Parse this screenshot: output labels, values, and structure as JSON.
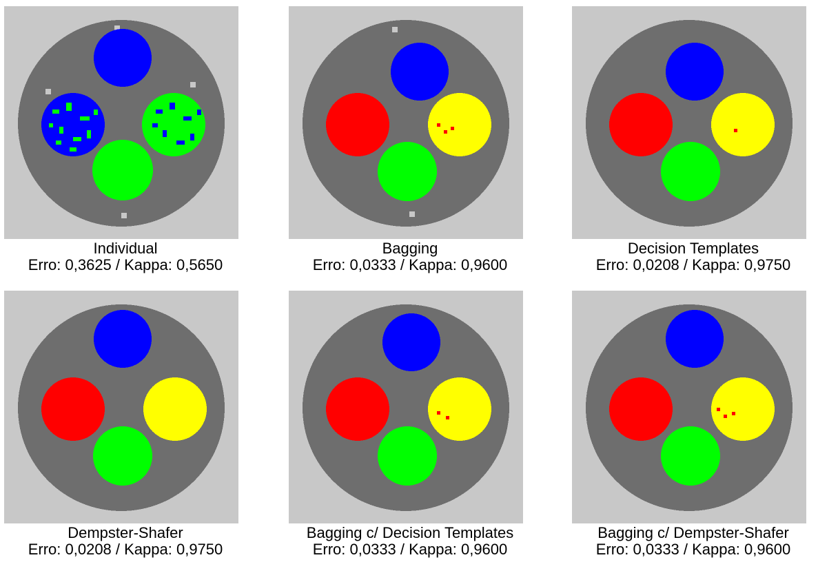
{
  "colors": {
    "background_outer": "#c8c8c8",
    "background_ring": "#6e6e6e",
    "noise": "#7a7a7a",
    "blue": "#0000ff",
    "red": "#ff0000",
    "yellow": "#ffff00",
    "green": "#00ff00"
  },
  "panels": [
    {
      "title": "Individual",
      "metrics": "Erro: 0,3625 / Kappa: 0,5650",
      "circles": [
        "blue",
        "blue-green",
        "green-blue",
        "green"
      ]
    },
    {
      "title": "Bagging",
      "metrics": "Erro: 0,0333 / Kappa: 0,9600",
      "circles": [
        "blue",
        "red",
        "yellow",
        "green"
      ]
    },
    {
      "title": "Decision Templates",
      "metrics": "Erro: 0,0208 / Kappa: 0,9750",
      "circles": [
        "blue",
        "red",
        "yellow",
        "green"
      ]
    },
    {
      "title": "Dempster-Shafer",
      "metrics": "Erro: 0,0208 / Kappa: 0,9750",
      "circles": [
        "blue",
        "red",
        "yellow",
        "green"
      ]
    },
    {
      "title": "Bagging c/ Decision Templates",
      "metrics": "Erro: 0,0333 / Kappa: 0,9600",
      "circles": [
        "blue",
        "red",
        "yellow",
        "green"
      ]
    },
    {
      "title": "Bagging c/ Dempster-Shafer",
      "metrics": "Erro: 0,0333 / Kappa: 0,9600",
      "circles": [
        "blue",
        "red",
        "yellow",
        "green"
      ]
    }
  ]
}
